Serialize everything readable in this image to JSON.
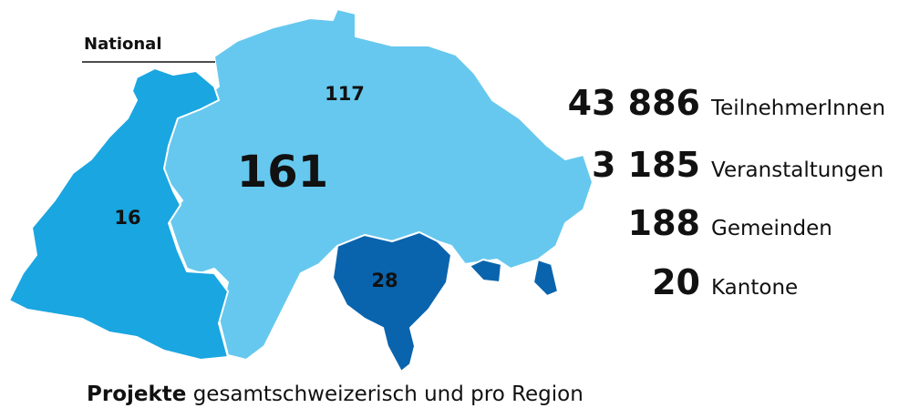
{
  "legend_label": "National",
  "regions": [
    {
      "label": "161"
    },
    {
      "label": "117"
    },
    {
      "label": "16"
    },
    {
      "label": "28"
    }
  ],
  "stats": [
    {
      "number": "43 886",
      "label": "TeilnehmerInnen"
    },
    {
      "number": "3 185",
      "label": "Veranstaltungen"
    },
    {
      "number": "188",
      "label": "Gemeinden"
    },
    {
      "number": "20",
      "label": "Kantone"
    }
  ],
  "caption": {
    "bold": "Projekte",
    "text": "gesamtschweizerisch und pro Region"
  }
}
